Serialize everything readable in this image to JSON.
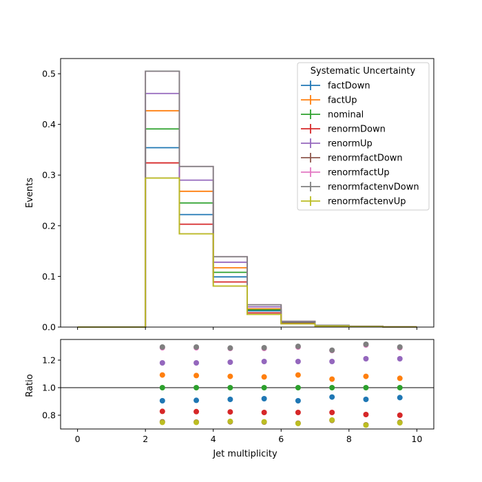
{
  "chart_data": [
    {
      "type": "step",
      "xlabel": "",
      "ylabel": "Events",
      "xlim": [
        -0.5,
        10.5
      ],
      "ylim": [
        0.0,
        0.53
      ],
      "xticks": [
        0,
        2,
        4,
        6,
        8,
        10
      ],
      "yticks": [
        0.0,
        0.1,
        0.2,
        0.3,
        0.4,
        0.5
      ],
      "ytick_labels": [
        "0.0",
        "0.1",
        "0.2",
        "0.3",
        "0.4",
        "0.5"
      ],
      "bin_edges": [
        0,
        1,
        2,
        3,
        4,
        5,
        6,
        7,
        8,
        9,
        10
      ],
      "legend": {
        "title": "Systematic Uncertainty",
        "placement": "top-right"
      },
      "series": [
        {
          "name": "factDown",
          "color": "#1f77b4",
          "values": [
            0,
            0,
            0.354,
            0.222,
            0.099,
            0.032,
            0.008,
            0.0025,
            0.0012,
            0.0004
          ]
        },
        {
          "name": "factUp",
          "color": "#ff7f0e",
          "values": [
            0,
            0,
            0.427,
            0.268,
            0.117,
            0.036,
            0.0095,
            0.0029,
            0.0014,
            0.0005
          ]
        },
        {
          "name": "nominal",
          "color": "#2ca02c",
          "values": [
            0,
            0,
            0.391,
            0.245,
            0.108,
            0.034,
            0.0088,
            0.0027,
            0.0013,
            0.00045
          ]
        },
        {
          "name": "renormDown",
          "color": "#d62728",
          "values": [
            0,
            0,
            0.324,
            0.203,
            0.089,
            0.028,
            0.0072,
            0.0022,
            0.001,
            0.0004
          ]
        },
        {
          "name": "renormUp",
          "color": "#9467bd",
          "values": [
            0,
            0,
            0.461,
            0.29,
            0.128,
            0.04,
            0.0104,
            0.0032,
            0.0016,
            0.0005
          ]
        },
        {
          "name": "renormfactDown",
          "color": "#8c564b",
          "values": [
            0,
            0,
            0.294,
            0.184,
            0.081,
            0.025,
            0.0065,
            0.002,
            0.0009,
            0.0003
          ]
        },
        {
          "name": "renormfactUp",
          "color": "#e377c2",
          "values": [
            0,
            0,
            0.505,
            0.317,
            0.139,
            0.044,
            0.0114,
            0.0035,
            0.0017,
            0.0006
          ]
        },
        {
          "name": "renormfactenvDown",
          "color": "#7f7f7f",
          "values": [
            0,
            0,
            0.505,
            0.317,
            0.139,
            0.044,
            0.0114,
            0.0035,
            0.0017,
            0.0006
          ]
        },
        {
          "name": "renormfactenvUp",
          "color": "#bcbd22",
          "values": [
            0,
            0,
            0.294,
            0.184,
            0.081,
            0.025,
            0.0065,
            0.002,
            0.0009,
            0.0003
          ]
        }
      ]
    },
    {
      "type": "scatter",
      "xlabel": "Jet multiplicity",
      "ylabel": "Ratio",
      "xlim": [
        -0.5,
        10.5
      ],
      "ylim": [
        0.7,
        1.35
      ],
      "xticks": [
        0,
        2,
        4,
        6,
        8,
        10
      ],
      "yticks": [
        0.8,
        1.0,
        1.2
      ],
      "ytick_labels": [
        "0.8",
        "1.0",
        "1.2"
      ],
      "reference_line": 1.0,
      "x": [
        2.5,
        3.5,
        4.5,
        5.5,
        6.5,
        7.5,
        8.5,
        9.5
      ],
      "series": [
        {
          "name": "factDown",
          "color": "#1f77b4",
          "values": [
            0.905,
            0.908,
            0.915,
            0.92,
            0.905,
            0.932,
            0.915,
            0.928
          ]
        },
        {
          "name": "factUp",
          "color": "#ff7f0e",
          "values": [
            1.092,
            1.088,
            1.082,
            1.078,
            1.092,
            1.062,
            1.082,
            1.068
          ]
        },
        {
          "name": "nominal",
          "color": "#2ca02c",
          "values": [
            1.0,
            1.0,
            1.0,
            1.0,
            1.0,
            1.0,
            1.0,
            1.0
          ]
        },
        {
          "name": "renormDown",
          "color": "#d62728",
          "values": [
            0.828,
            0.826,
            0.824,
            0.82,
            0.82,
            0.82,
            0.805,
            0.8
          ]
        },
        {
          "name": "renormUp",
          "color": "#9467bd",
          "values": [
            1.18,
            1.18,
            1.185,
            1.19,
            1.19,
            1.19,
            1.21,
            1.21
          ]
        },
        {
          "name": "renormfactDown",
          "color": "#8c564b",
          "values": [
            0.752,
            0.75,
            0.752,
            0.75,
            0.742,
            0.762,
            0.73,
            0.748
          ]
        },
        {
          "name": "renormfactUp",
          "color": "#e377c2",
          "values": [
            1.29,
            1.29,
            1.285,
            1.285,
            1.295,
            1.27,
            1.31,
            1.29
          ]
        },
        {
          "name": "renormfactenvDown",
          "color": "#7f7f7f",
          "values": [
            1.295,
            1.295,
            1.288,
            1.29,
            1.3,
            1.272,
            1.315,
            1.295
          ]
        },
        {
          "name": "renormfactenvUp",
          "color": "#bcbd22",
          "values": [
            0.748,
            0.748,
            0.755,
            0.752,
            0.74,
            0.765,
            0.728,
            0.745
          ]
        }
      ]
    }
  ]
}
